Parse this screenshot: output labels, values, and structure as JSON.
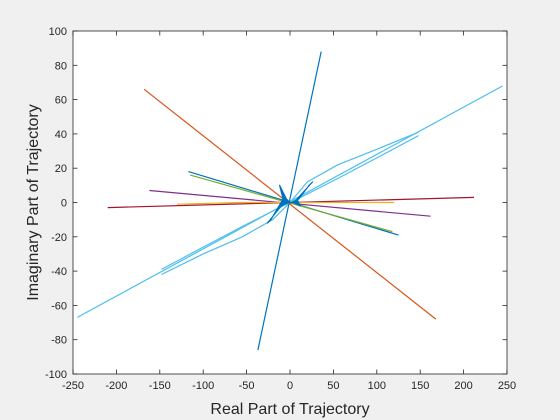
{
  "chart_data": {
    "type": "line",
    "title": "",
    "xlabel": "Real Part of Trajectory",
    "ylabel": "Imaginary Part of Trajectory",
    "xlim": [
      -250,
      250
    ],
    "ylim": [
      -100,
      100
    ],
    "xticks": [
      -250,
      -200,
      -150,
      -100,
      -50,
      0,
      50,
      100,
      150,
      200,
      250
    ],
    "yticks": [
      -100,
      -80,
      -60,
      -40,
      -20,
      0,
      20,
      40,
      60,
      80,
      100
    ],
    "grid": false,
    "legend": "none",
    "series": [
      {
        "color": "#4DBEEE",
        "width": 1.2,
        "x": [
          -245,
          245
        ],
        "y": [
          -67,
          68
        ]
      },
      {
        "color": "#4DBEEE",
        "width": 1.2,
        "x": [
          -148,
          -100,
          -55,
          -20,
          0,
          20,
          55,
          100,
          148
        ],
        "y": [
          -42,
          -30,
          -20,
          -10,
          0,
          12,
          22,
          31,
          41
        ]
      },
      {
        "color": "#4DBEEE",
        "width": 1.2,
        "x": [
          -148,
          -100,
          -55,
          -20,
          0,
          20,
          55,
          100,
          148
        ],
        "y": [
          -39,
          -26,
          -14,
          -5,
          0,
          5,
          14,
          26,
          39
        ]
      },
      {
        "color": "#D95319",
        "width": 1.2,
        "x": [
          -168,
          168
        ],
        "y": [
          66,
          -68
        ]
      },
      {
        "color": "#0072BD",
        "width": 1.2,
        "x": [
          -37,
          36
        ],
        "y": [
          -86,
          88
        ]
      },
      {
        "color": "#0072BD",
        "width": 1.2,
        "x": [
          -117,
          125
        ],
        "y": [
          18,
          -19
        ]
      },
      {
        "color": "#7E2F8E",
        "width": 1.2,
        "x": [
          -162,
          162
        ],
        "y": [
          7,
          -8
        ]
      },
      {
        "color": "#A2142F",
        "width": 1.2,
        "x": [
          -210,
          212
        ],
        "y": [
          -3,
          3
        ]
      },
      {
        "color": "#EDB120",
        "width": 1.2,
        "x": [
          -130,
          -60,
          0,
          60,
          120
        ],
        "y": [
          -1,
          0,
          0,
          0,
          0
        ]
      },
      {
        "color": "#77AC30",
        "width": 1.2,
        "x": [
          -115,
          118
        ],
        "y": [
          16,
          -17
        ]
      },
      {
        "color": "#0072BD",
        "width": 1.2,
        "fill": true,
        "x": [
          0,
          -4,
          -12,
          -8,
          -22,
          -26,
          -10,
          -2,
          2,
          10,
          22,
          26,
          8,
          12,
          4,
          0
        ],
        "y": [
          0,
          2,
          10,
          2,
          -10,
          -12,
          -2,
          0,
          0,
          2,
          10,
          12,
          2,
          -2,
          0,
          0
        ]
      }
    ]
  }
}
